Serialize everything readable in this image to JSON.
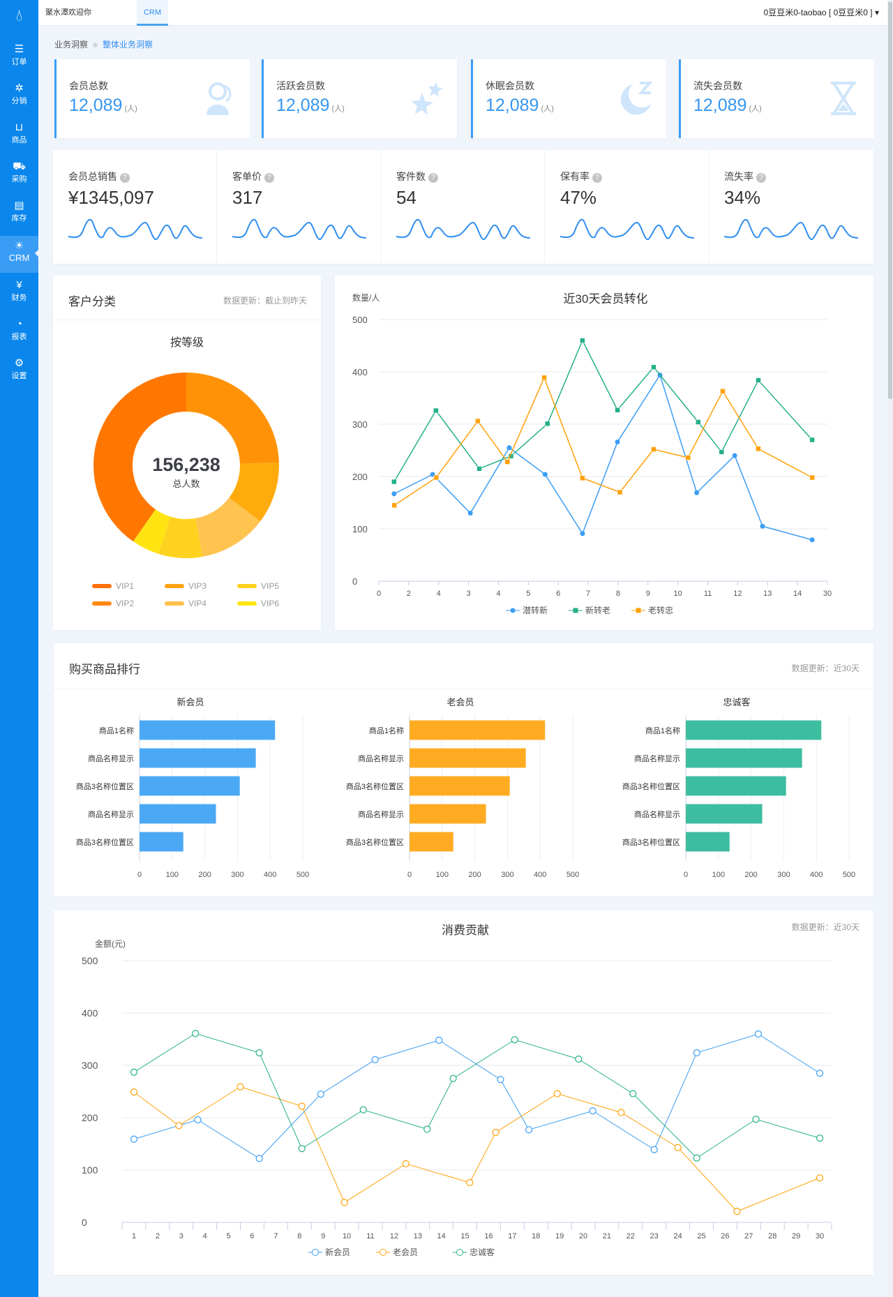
{
  "app": {
    "logo_icon": "water-drop-icon"
  },
  "sidebar": {
    "items": [
      {
        "label": "订单",
        "icon": "order-list-icon"
      },
      {
        "label": "分销",
        "icon": "distribution-icon"
      },
      {
        "label": "商品",
        "icon": "shopping-bag-icon"
      },
      {
        "label": "采购",
        "icon": "truck-icon"
      },
      {
        "label": "库存",
        "icon": "warehouse-icon"
      },
      {
        "label": "CRM",
        "icon": "lightbulb-icon",
        "active": true
      },
      {
        "label": "财务",
        "icon": "yuan-icon"
      },
      {
        "label": "报表",
        "icon": "pie-report-icon"
      },
      {
        "label": "设置",
        "icon": "gear-icon"
      }
    ]
  },
  "topbar": {
    "tabs": [
      {
        "label": "聚水潭欢迎你"
      },
      {
        "label": "CRM",
        "active": true
      }
    ],
    "user": "0豆豆米0-taobao [ 0豆豆米0 ]",
    "user_caret": "▾"
  },
  "breadcrumb": {
    "parent": "业务洞察",
    "current": "整体业务洞察"
  },
  "stat_cards": [
    {
      "label": "会员总数",
      "value": "12,089",
      "unit": "(人)",
      "icon": "user-icon"
    },
    {
      "label": "活跃会员数",
      "value": "12,089",
      "unit": "(人)",
      "icon": "stars-icon"
    },
    {
      "label": "休眠会员数",
      "value": "12,089",
      "unit": "(人)",
      "icon": "moon-sleep-icon"
    },
    {
      "label": "流失会员数",
      "value": "12,089",
      "unit": "(人)",
      "icon": "hourglass-icon"
    }
  ],
  "metrics": [
    {
      "label": "会员总销售",
      "value": "¥1345,097"
    },
    {
      "label": "客单价",
      "value": "317"
    },
    {
      "label": "客件数",
      "value": "54"
    },
    {
      "label": "保有率",
      "value": "47%"
    },
    {
      "label": "流失率",
      "value": "34%"
    }
  ],
  "help_glyph": "?",
  "customer": {
    "title": "客户分类",
    "note": "数据更新：截止到昨天"
  },
  "ranking": {
    "title": "购买商品排行",
    "note": "数据更新：近30天"
  },
  "colors": {
    "primary": "#0a86ec",
    "blue": "#3a9df5",
    "green": "#2fb78f",
    "orange": "#ffa41b"
  },
  "chart_data": [
    {
      "type": "pie",
      "title": "按等级",
      "center_value": "156,238",
      "center_label": "总人数",
      "slices_clockwise_from_top": [
        {
          "name": "VIP2",
          "percent": 24.5,
          "color": "#ff9207"
        },
        {
          "name": "VIP3",
          "percent": 10.8,
          "color": "#ffab0c"
        },
        {
          "name": "VIP4",
          "percent": 11.9,
          "color": "#ffc34f"
        },
        {
          "name": "VIP5",
          "percent": 7.6,
          "color": "#ffd21f"
        },
        {
          "name": "VIP6",
          "percent": 4.9,
          "color": "#ffe411"
        },
        {
          "name": "VIP1",
          "percent": 40.3,
          "color": "#ff7700"
        }
      ],
      "legend": [
        {
          "name": "VIP1",
          "color": "#ff6f0a"
        },
        {
          "name": "VIP2",
          "color": "#ff8a12"
        },
        {
          "name": "VIP3",
          "color": "#ffa313"
        },
        {
          "name": "VIP4",
          "color": "#ffc04d"
        },
        {
          "name": "VIP5",
          "color": "#ffd21f"
        },
        {
          "name": "VIP6",
          "color": "#ffe612"
        }
      ],
      "legend_placement": "bottom"
    },
    {
      "type": "line",
      "title": "近30天会员转化",
      "ylabel": "数量/人",
      "ylim": [
        0,
        500
      ],
      "yticks": [
        0,
        100,
        200,
        300,
        400,
        500
      ],
      "xtick_labels": [
        "0",
        "2",
        "4",
        "3",
        "4",
        "5",
        "6",
        "7",
        "8",
        "9",
        "10",
        "11",
        "12",
        "13",
        "14",
        "30"
      ],
      "x_note": "x values are positions along the tick sequence (tick index)",
      "grid": true,
      "legend_placement": "bottom",
      "series": [
        {
          "name": "潜转新",
          "color": "#3a9df5",
          "marker": "circle",
          "points": [
            [
              0.51,
              167
            ],
            [
              1.8,
              204
            ],
            [
              3.06,
              130
            ],
            [
              4.36,
              255
            ],
            [
              5.56,
              204
            ],
            [
              6.81,
              91
            ],
            [
              7.98,
              266
            ],
            [
              9.4,
              394
            ],
            [
              10.63,
              169
            ],
            [
              11.9,
              240
            ],
            [
              12.83,
              105
            ],
            [
              14.49,
              79
            ]
          ]
        },
        {
          "name": "新转老",
          "color": "#26b089",
          "marker": "square",
          "points": [
            [
              0.51,
              190
            ],
            [
              1.91,
              326
            ],
            [
              3.36,
              215
            ],
            [
              4.42,
              239
            ],
            [
              5.64,
              301
            ],
            [
              6.81,
              460
            ],
            [
              7.98,
              327
            ],
            [
              9.19,
              409
            ],
            [
              10.68,
              304
            ],
            [
              11.46,
              247
            ],
            [
              12.69,
              384
            ],
            [
              14.49,
              270
            ]
          ]
        },
        {
          "name": "老转忠",
          "color": "#ffa10a",
          "marker": "square",
          "points": [
            [
              0.52,
              145
            ],
            [
              1.92,
              198
            ],
            [
              3.31,
              306
            ],
            [
              4.3,
              228
            ],
            [
              5.53,
              389
            ],
            [
              6.81,
              197
            ],
            [
              8.06,
              170
            ],
            [
              9.19,
              252
            ],
            [
              10.34,
              236
            ],
            [
              11.5,
              363
            ],
            [
              12.69,
              253
            ],
            [
              14.49,
              198
            ]
          ]
        }
      ]
    },
    {
      "type": "bar",
      "orientation": "horizontal",
      "title": "新会员",
      "categories": [
        "商品1名称",
        "商品名称显示",
        "商品3名称位置区",
        "商品名称显示",
        "商品3名称位置区"
      ],
      "values": [
        413,
        354,
        305,
        232,
        132
      ],
      "xlim": [
        0,
        500
      ],
      "xticks": [
        0,
        100,
        200,
        300,
        400,
        500
      ],
      "color": "#4aa8f5",
      "grid": true
    },
    {
      "type": "bar",
      "orientation": "horizontal",
      "title": "老会员",
      "categories": [
        "商品1名称",
        "商品名称显示",
        "商品3名称位置区",
        "商品名称显示",
        "商品3名称位置区"
      ],
      "values": [
        413,
        354,
        305,
        232,
        132
      ],
      "xlim": [
        0,
        500
      ],
      "xticks": [
        0,
        100,
        200,
        300,
        400,
        500
      ],
      "color": "#ffab22",
      "grid": true
    },
    {
      "type": "bar",
      "orientation": "horizontal",
      "title": "忠诚客",
      "categories": [
        "商品1名称",
        "商品名称显示",
        "商品3名称位置区",
        "商品名称显示",
        "商品3名称位置区"
      ],
      "values": [
        413,
        354,
        305,
        232,
        132
      ],
      "xlim": [
        0,
        500
      ],
      "xticks": [
        0,
        100,
        200,
        300,
        400,
        500
      ],
      "color": "#3dbd9f",
      "grid": true
    },
    {
      "type": "line",
      "title": "消费贡献",
      "note": "数据更新：近30天",
      "ylabel": "金额(元)",
      "ylim": [
        0,
        500
      ],
      "yticks": [
        0,
        100,
        200,
        300,
        400,
        500
      ],
      "xlim": [
        1,
        30
      ],
      "xtick_labels": [
        "1",
        "2",
        "3",
        "4",
        "5",
        "6",
        "7",
        "8",
        "9",
        "10",
        "11",
        "12",
        "13",
        "14",
        "15",
        "16",
        "17",
        "18",
        "19",
        "20",
        "21",
        "22",
        "23",
        "24",
        "25",
        "26",
        "27",
        "28",
        "29",
        "30"
      ],
      "grid": true,
      "legend_placement": "bottom",
      "series": [
        {
          "name": "新会员",
          "color": "#3a9df5",
          "marker": "hollow-circle",
          "points": [
            [
              1,
              159
            ],
            [
              3.7,
              196
            ],
            [
              6.3,
              122
            ],
            [
              8.9,
              245
            ],
            [
              11.2,
              311
            ],
            [
              13.9,
              348
            ],
            [
              16.5,
              273
            ],
            [
              17.7,
              177
            ],
            [
              20.4,
              213
            ],
            [
              23,
              139
            ],
            [
              24.8,
              324
            ],
            [
              27.4,
              360
            ],
            [
              30,
              285
            ]
          ]
        },
        {
          "name": "老会员",
          "color": "#ffa10a",
          "marker": "hollow-circle",
          "points": [
            [
              1,
              249
            ],
            [
              2.9,
              185
            ],
            [
              5.5,
              259
            ],
            [
              8.1,
              222
            ],
            [
              9.9,
              38
            ],
            [
              12.5,
              112
            ],
            [
              15.2,
              76
            ],
            [
              16.3,
              172
            ],
            [
              18.9,
              246
            ],
            [
              21.6,
              210
            ],
            [
              24,
              143
            ],
            [
              26.5,
              21
            ],
            [
              30,
              85
            ]
          ]
        },
        {
          "name": "忠诚客",
          "color": "#26b089",
          "marker": "hollow-circle",
          "points": [
            [
              1,
              287
            ],
            [
              3.6,
              361
            ],
            [
              6.3,
              324
            ],
            [
              8.1,
              141
            ],
            [
              10.7,
              215
            ],
            [
              13.4,
              178
            ],
            [
              14.5,
              275
            ],
            [
              17.1,
              349
            ],
            [
              19.8,
              312
            ],
            [
              22.1,
              246
            ],
            [
              24.8,
              123
            ],
            [
              27.3,
              197
            ],
            [
              30,
              161
            ]
          ]
        }
      ]
    }
  ]
}
